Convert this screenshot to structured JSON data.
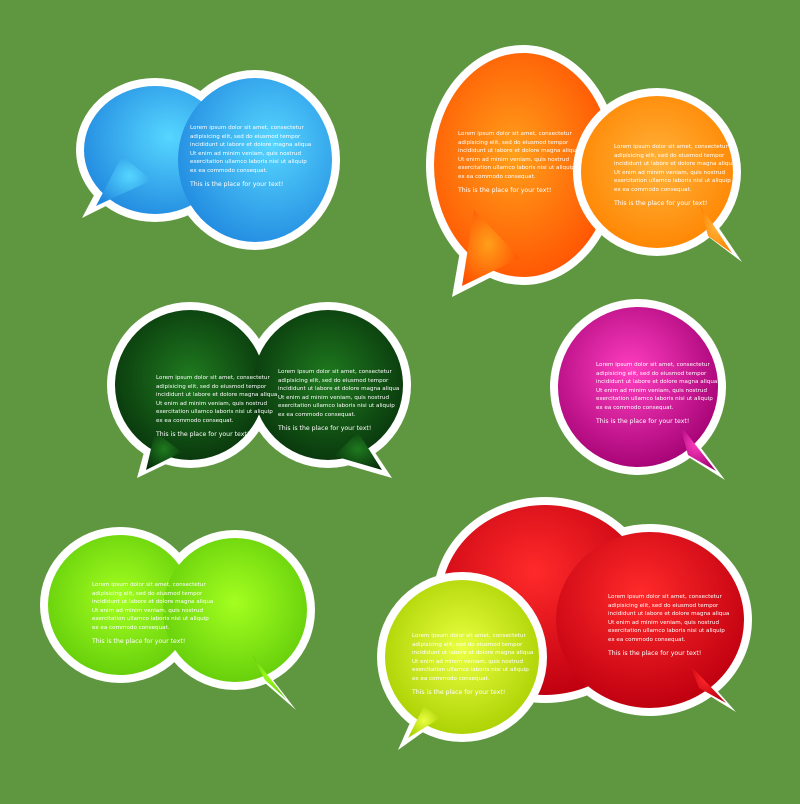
{
  "colors": {
    "background": "#5f9640",
    "outline": "#ffffff",
    "blue": "#2f9fe6",
    "orange_large": "#ff6a00",
    "orange_small": "#ff9a10",
    "dark_green": "#0d4412",
    "magenta": "#c2108a",
    "lime": "#7fe612",
    "red": "#d8101a",
    "yellow_green": "#c6e40c"
  },
  "placeholder": {
    "line1": "Lorem ipsum dolor sit amet, consectetur",
    "line2": "adipisicing elit, sed do eiusmod tempor",
    "line3": "incididunt ut labore et dolore magna aliqua",
    "line4": "Ut enim ad minim veniam, quis nostrud",
    "line5": "exercitation ullamco laboris nisi ut aliquip",
    "line6": "ex ea commodo consequat.",
    "call_to_action": "This is the place for your text!"
  }
}
